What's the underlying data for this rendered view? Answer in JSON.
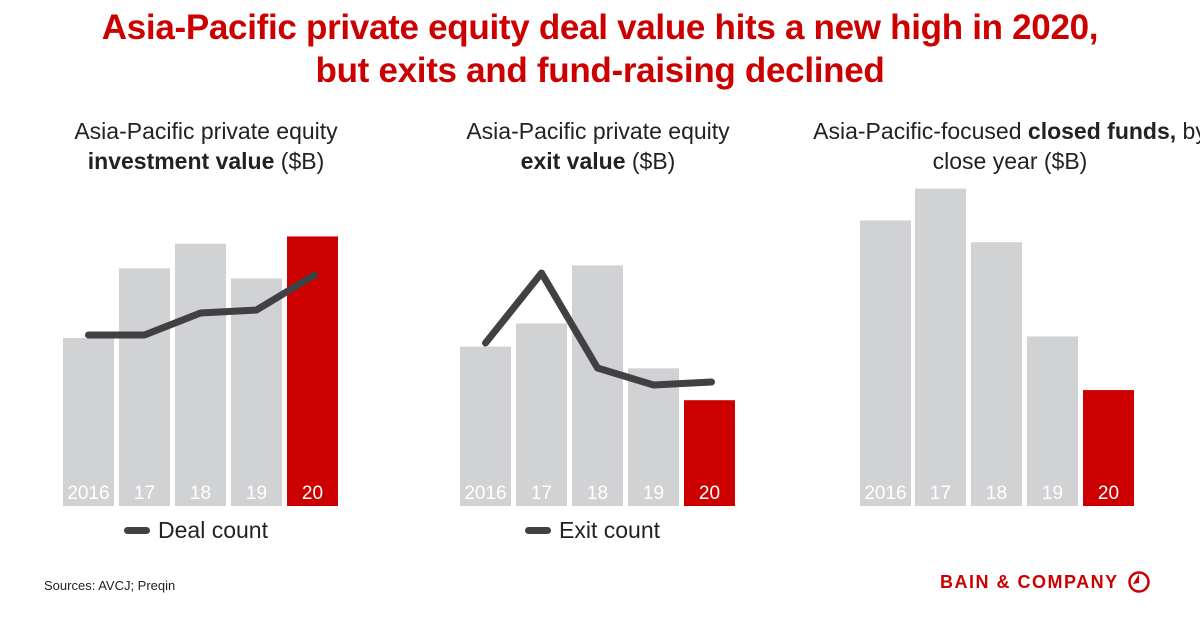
{
  "title_line1": "Asia-Pacific private equity deal value hits a new high in 2020,",
  "title_line2": "but exits and fund-raising declined",
  "colors": {
    "bar": "#d1d2d4",
    "highlight": "#cc0000",
    "line": "#414042",
    "accent": "#cc0000"
  },
  "chart_data": [
    {
      "type": "bar",
      "title_pre": "Asia-Pacific private equity",
      "title_bold": "investment value",
      "title_post": " ($B)",
      "categories": [
        "2016",
        "17",
        "18",
        "19",
        "20"
      ],
      "values": [
        116,
        164,
        181,
        157,
        186
      ],
      "highlight_index": 4,
      "line_series": {
        "name": "Deal count",
        "values": [
          171,
          171,
          193,
          196,
          231
        ]
      },
      "grid": false,
      "legend": "bottom"
    },
    {
      "type": "bar",
      "title_pre": "Asia-Pacific private equity",
      "title_bold": "exit value",
      "title_post": " ($B)",
      "categories": [
        "2016",
        "17",
        "18",
        "19",
        "20"
      ],
      "values": [
        110,
        126,
        166,
        95,
        73
      ],
      "highlight_index": 4,
      "line_series": {
        "name": "Exit count",
        "values": [
          163,
          233,
          138,
          121,
          124
        ]
      },
      "grid": false,
      "legend": "bottom"
    },
    {
      "type": "bar",
      "title_pre": "Asia-Pacific-focused ",
      "title_bold": "closed funds,",
      "title_post": " by close year ($B)",
      "categories": [
        "2016",
        "17",
        "18",
        "19",
        "20"
      ],
      "values": [
        197,
        219,
        182,
        117,
        80
      ],
      "highlight_index": 4,
      "grid": false
    }
  ],
  "source": "Sources: AVCJ; Preqin",
  "logo_text": "BAIN & COMPANY"
}
